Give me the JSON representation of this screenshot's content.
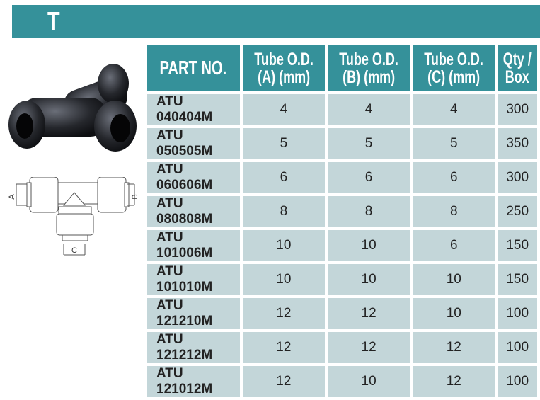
{
  "title": "T",
  "accent_color": "#35919a",
  "row_color": "#c3d6d9",
  "diagram_labels": {
    "a": "A",
    "b": "B",
    "c": "C"
  },
  "table": {
    "headers": [
      {
        "line1": "PART NO.",
        "line2": ""
      },
      {
        "line1": "Tube O.D.",
        "line2": "(A) (mm)"
      },
      {
        "line1": "Tube O.D.",
        "line2": "(B) (mm)"
      },
      {
        "line1": "Tube O.D.",
        "line2": "(C) (mm)"
      },
      {
        "line1": "Qty /",
        "line2": "Box"
      }
    ],
    "rows": [
      [
        "ATU 040404M",
        "4",
        "4",
        "4",
        "300"
      ],
      [
        "ATU 050505M",
        "5",
        "5",
        "5",
        "350"
      ],
      [
        "ATU 060606M",
        "6",
        "6",
        "6",
        "300"
      ],
      [
        "ATU 080808M",
        "8",
        "8",
        "8",
        "250"
      ],
      [
        "ATU 101006M",
        "10",
        "10",
        "6",
        "150"
      ],
      [
        "ATU 101010M",
        "10",
        "10",
        "10",
        "150"
      ],
      [
        "ATU 121210M",
        "12",
        "12",
        "10",
        "100"
      ],
      [
        "ATU 121212M",
        "12",
        "12",
        "12",
        "100"
      ],
      [
        "ATU 121012M",
        "12",
        "10",
        "12",
        "100"
      ]
    ]
  }
}
